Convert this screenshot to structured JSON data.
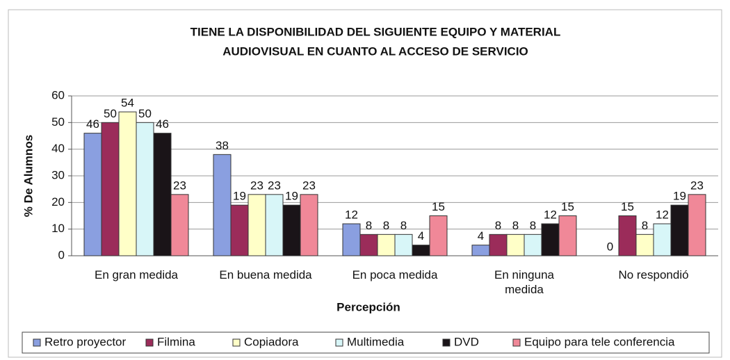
{
  "chart_data": {
    "type": "bar",
    "title": [
      "TIENE  LA DISPONIBILIDAD DEL SIGUIENTE EQUIPO Y MATERIAL",
      "AUDIOVISUAL EN CUANTO AL ACCESO DE SERVICIO"
    ],
    "x_label": "Percepción",
    "y_label": "% De Alumnos",
    "categories": [
      "En gran medida",
      "En buena medida",
      "En poca medida",
      "En ninguna medida",
      "No respondió"
    ],
    "series": [
      {
        "name": "Retro proyector",
        "color": "#8a9fe0",
        "values": [
          46,
          38,
          12,
          4,
          0
        ]
      },
      {
        "name": "Filmina",
        "color": "#9b2c5a",
        "values": [
          50,
          19,
          8,
          8,
          15
        ]
      },
      {
        "name": "Copiadora",
        "color": "#ffffc8",
        "values": [
          54,
          23,
          8,
          8,
          8
        ]
      },
      {
        "name": "Multimedia",
        "color": "#d8f6f8",
        "values": [
          50,
          23,
          8,
          8,
          12
        ]
      },
      {
        "name": "DVD",
        "color": "#1a1418",
        "values": [
          46,
          19,
          4,
          12,
          19
        ]
      },
      {
        "name": "Equipo para tele conferencia",
        "color": "#f08898",
        "values": [
          23,
          23,
          15,
          15,
          23
        ]
      }
    ],
    "ylim": [
      0,
      60
    ],
    "yticks": [
      0,
      10,
      20,
      30,
      40,
      50,
      60
    ],
    "grid": true,
    "legend": "bottom"
  }
}
